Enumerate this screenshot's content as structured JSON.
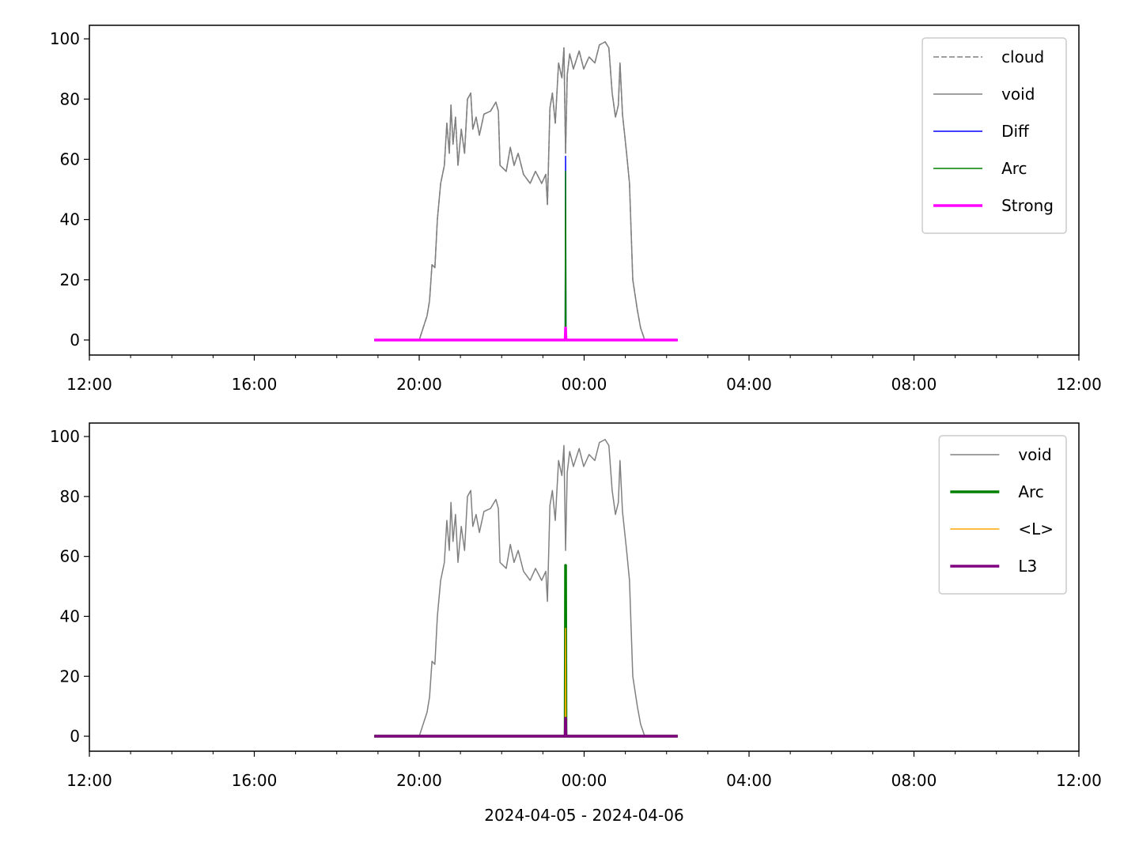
{
  "chart_data": [
    {
      "type": "line",
      "legend": "upper right",
      "xlim": [
        12,
        36
      ],
      "xticks": [
        {
          "value": 12,
          "label": "12:00"
        },
        {
          "value": 16,
          "label": "16:00"
        },
        {
          "value": 20,
          "label": "20:00"
        },
        {
          "value": 24,
          "label": "00:00"
        },
        {
          "value": 28,
          "label": "04:00"
        },
        {
          "value": 32,
          "label": "08:00"
        },
        {
          "value": 36,
          "label": "12:00"
        }
      ],
      "xminorticks": [
        13,
        14,
        15,
        17,
        18,
        19,
        21,
        22,
        23,
        25,
        26,
        27,
        29,
        30,
        31,
        33,
        34,
        35
      ],
      "ylim": [
        -5,
        104.5
      ],
      "yticks": [
        0,
        20,
        40,
        60,
        80,
        100
      ],
      "series": [
        {
          "name": "cloud",
          "color": "#808080",
          "linestyle": "dashed",
          "linewidth": 1.5,
          "x": [
            18.91,
            20.0,
            20.19,
            20.25,
            20.31,
            20.38,
            20.44,
            20.52,
            20.61,
            20.67,
            20.73,
            20.77,
            20.82,
            20.88,
            20.94,
            21.02,
            21.1,
            21.17,
            21.25,
            21.3,
            21.38,
            21.46,
            21.57,
            21.73,
            21.86,
            21.92,
            21.96,
            22.11,
            22.21,
            22.3,
            22.4,
            22.53,
            22.69,
            22.82,
            22.97,
            23.07,
            23.11,
            23.17,
            23.23,
            23.3,
            23.38,
            23.46,
            23.51,
            23.55,
            23.59,
            23.65,
            23.74,
            23.88,
            23.99,
            24.12,
            24.26,
            24.37,
            24.51,
            24.6,
            24.68,
            24.76,
            24.83,
            24.87,
            24.93,
            25.03,
            25.1,
            25.18,
            25.29,
            25.37,
            25.47,
            26.27
          ],
          "values": [
            0,
            0,
            8,
            13,
            25,
            24,
            40,
            52,
            58,
            72,
            62,
            78,
            65,
            74,
            58,
            70,
            62,
            80,
            82,
            70,
            74,
            68,
            75,
            76,
            79,
            76,
            58,
            56,
            64,
            58,
            62,
            55,
            52,
            56,
            52,
            55,
            45,
            77,
            82,
            72,
            92,
            87,
            97,
            62,
            88,
            95,
            90,
            96,
            90,
            94,
            92,
            98,
            99,
            97,
            82,
            74,
            78,
            92,
            75,
            62,
            52,
            20,
            10,
            4,
            0,
            0
          ]
        },
        {
          "name": "void",
          "color": "#808080",
          "linestyle": "solid",
          "linewidth": 1.5,
          "x": [
            18.91,
            20.0,
            20.19,
            20.25,
            20.31,
            20.38,
            20.44,
            20.52,
            20.61,
            20.67,
            20.73,
            20.77,
            20.82,
            20.88,
            20.94,
            21.02,
            21.1,
            21.17,
            21.25,
            21.3,
            21.38,
            21.46,
            21.57,
            21.73,
            21.86,
            21.92,
            21.96,
            22.11,
            22.21,
            22.3,
            22.4,
            22.53,
            22.69,
            22.82,
            22.97,
            23.07,
            23.11,
            23.17,
            23.23,
            23.3,
            23.38,
            23.46,
            23.51,
            23.55,
            23.59,
            23.65,
            23.74,
            23.88,
            23.99,
            24.12,
            24.26,
            24.37,
            24.51,
            24.6,
            24.68,
            24.76,
            24.83,
            24.87,
            24.93,
            25.03,
            25.1,
            25.18,
            25.29,
            25.37,
            25.47,
            26.27
          ],
          "values": [
            0,
            0,
            8,
            13,
            25,
            24,
            40,
            52,
            58,
            72,
            62,
            78,
            65,
            74,
            58,
            70,
            62,
            80,
            82,
            70,
            74,
            68,
            75,
            76,
            79,
            76,
            58,
            56,
            64,
            58,
            62,
            55,
            52,
            56,
            52,
            55,
            45,
            77,
            82,
            72,
            92,
            87,
            97,
            62,
            88,
            95,
            90,
            96,
            90,
            94,
            92,
            98,
            99,
            97,
            82,
            74,
            78,
            92,
            75,
            62,
            52,
            20,
            10,
            4,
            0,
            0
          ]
        },
        {
          "name": "Diff",
          "color": "#0000ff",
          "linestyle": "solid",
          "linewidth": 1.5,
          "x": [
            18.91,
            23.54,
            23.55,
            23.56,
            26.27
          ],
          "values": [
            0,
            0,
            61,
            0,
            0
          ]
        },
        {
          "name": "Arc",
          "color": "#008000",
          "linestyle": "solid",
          "linewidth": 1.5,
          "x": [
            18.91,
            23.54,
            23.55,
            23.56,
            26.27
          ],
          "values": [
            0,
            0,
            56,
            0,
            0
          ]
        },
        {
          "name": "Strong",
          "color": "#ff00ff",
          "linestyle": "solid",
          "linewidth": 3.5,
          "x": [
            18.91,
            23.54,
            23.55,
            23.56,
            26.27
          ],
          "values": [
            0,
            0,
            4,
            0,
            0
          ]
        }
      ]
    },
    {
      "type": "line",
      "legend": "upper right",
      "xlabel": "2024-04-05 - 2024-04-06",
      "xlim": [
        12,
        36
      ],
      "xticks": [
        {
          "value": 12,
          "label": "12:00"
        },
        {
          "value": 16,
          "label": "16:00"
        },
        {
          "value": 20,
          "label": "20:00"
        },
        {
          "value": 24,
          "label": "00:00"
        },
        {
          "value": 28,
          "label": "04:00"
        },
        {
          "value": 32,
          "label": "08:00"
        },
        {
          "value": 36,
          "label": "12:00"
        }
      ],
      "xminorticks": [
        13,
        14,
        15,
        17,
        18,
        19,
        21,
        22,
        23,
        25,
        26,
        27,
        29,
        30,
        31,
        33,
        34,
        35
      ],
      "ylim": [
        -5,
        104.5
      ],
      "yticks": [
        0,
        20,
        40,
        60,
        80,
        100
      ],
      "series": [
        {
          "name": "void",
          "color": "#808080",
          "linestyle": "solid",
          "linewidth": 1.5,
          "x": [
            18.91,
            20.0,
            20.19,
            20.25,
            20.31,
            20.38,
            20.44,
            20.52,
            20.61,
            20.67,
            20.73,
            20.77,
            20.82,
            20.88,
            20.94,
            21.02,
            21.1,
            21.17,
            21.25,
            21.3,
            21.38,
            21.46,
            21.57,
            21.73,
            21.86,
            21.92,
            21.96,
            22.11,
            22.21,
            22.3,
            22.4,
            22.53,
            22.69,
            22.82,
            22.97,
            23.07,
            23.11,
            23.17,
            23.23,
            23.3,
            23.38,
            23.46,
            23.51,
            23.55,
            23.59,
            23.65,
            23.74,
            23.88,
            23.99,
            24.12,
            24.26,
            24.37,
            24.51,
            24.6,
            24.68,
            24.76,
            24.83,
            24.87,
            24.93,
            25.03,
            25.1,
            25.18,
            25.29,
            25.37,
            25.47,
            26.27
          ],
          "values": [
            0,
            0,
            8,
            13,
            25,
            24,
            40,
            52,
            58,
            72,
            62,
            78,
            65,
            74,
            58,
            70,
            62,
            80,
            82,
            70,
            74,
            68,
            75,
            76,
            79,
            76,
            58,
            56,
            64,
            58,
            62,
            55,
            52,
            56,
            52,
            55,
            45,
            77,
            82,
            72,
            92,
            87,
            97,
            62,
            88,
            95,
            90,
            96,
            90,
            94,
            92,
            98,
            99,
            97,
            82,
            74,
            78,
            92,
            75,
            62,
            52,
            20,
            10,
            4,
            0,
            0
          ]
        },
        {
          "name": "Arc",
          "color": "#008000",
          "linestyle": "solid",
          "linewidth": 3.5,
          "x": [
            18.91,
            23.54,
            23.55,
            23.56,
            26.27
          ],
          "values": [
            0,
            0,
            57,
            0,
            0
          ]
        },
        {
          "name": "<L>",
          "color": "#ffa500",
          "linestyle": "solid",
          "linewidth": 1.5,
          "x": [
            18.91,
            23.54,
            23.55,
            23.56,
            26.27
          ],
          "values": [
            0,
            0,
            36,
            0,
            0
          ]
        },
        {
          "name": "L3",
          "color": "#800080",
          "linestyle": "solid",
          "linewidth": 3.5,
          "x": [
            18.91,
            23.54,
            23.55,
            23.56,
            26.27
          ],
          "values": [
            0,
            0,
            6,
            0,
            0
          ]
        }
      ]
    }
  ]
}
